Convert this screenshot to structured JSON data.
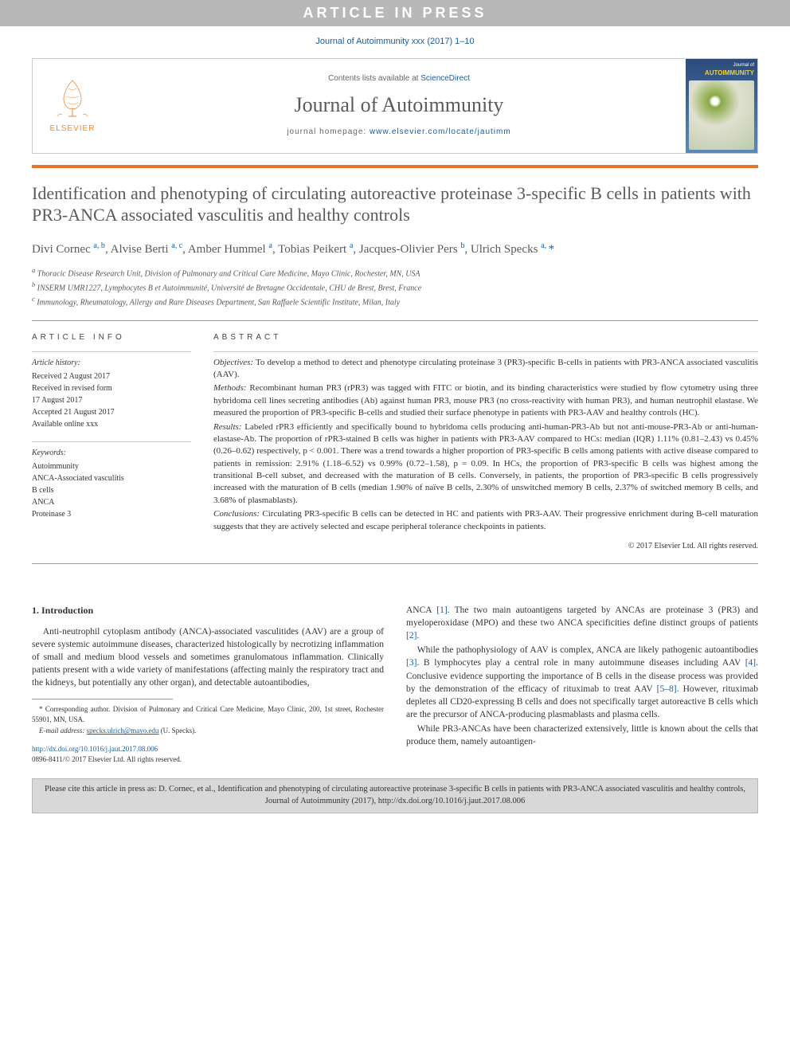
{
  "banner": "ARTICLE IN PRESS",
  "journal_ref": "Journal of Autoimmunity xxx (2017) 1–10",
  "header": {
    "elsevier": "ELSEVIER",
    "sd_prefix": "Contents lists available at ",
    "sd_link": "ScienceDirect",
    "journal_title": "Journal of Autoimmunity",
    "homepage_prefix": "journal homepage: ",
    "homepage_url": "www.elsevier.com/locate/jautimm",
    "cover_label": "AUTOIMMUNITY",
    "cover_small": "Journal of"
  },
  "title": "Identification and phenotyping of circulating autoreactive proteinase 3-specific B cells in patients with PR3-ANCA associated vasculitis and healthy controls",
  "authors_html": "Divi Cornec <sup>a, b</sup>, Alvise Berti <sup>a, c</sup>, Amber Hummel <sup>a</sup>, Tobias Peikert <sup>a</sup>, Jacques-Olivier Pers <sup>b</sup>, Ulrich Specks <sup>a, </sup><span class='star'>*</span>",
  "affiliations": [
    "a Thoracic Disease Research Unit, Division of Pulmonary and Critical Care Medicine, Mayo Clinic, Rochester, MN, USA",
    "b INSERM UMR1227, Lymphocytes B et Autoimmunité, Université de Bretagne Occidentale, CHU de Brest, Brest, France",
    "c Immunology, Rheumatology, Allergy and Rare Diseases Department, San Raffaele Scientific Institute, Milan, Italy"
  ],
  "article_info": {
    "head": "ARTICLE INFO",
    "history_label": "Article history:",
    "history": [
      "Received 2 August 2017",
      "Received in revised form",
      "17 August 2017",
      "Accepted 21 August 2017",
      "Available online xxx"
    ],
    "keywords_label": "Keywords:",
    "keywords": [
      "Autoimmunity",
      "ANCA-Associated vasculitis",
      "B cells",
      "ANCA",
      "Proteinase 3"
    ]
  },
  "abstract": {
    "head": "ABSTRACT",
    "objectives_label": "Objectives:",
    "objectives": " To develop a method to detect and phenotype circulating proteinase 3 (PR3)-specific B-cells in patients with PR3-ANCA associated vasculitis (AAV).",
    "methods_label": "Methods:",
    "methods": " Recombinant human PR3 (rPR3) was tagged with FITC or biotin, and its binding characteristics were studied by flow cytometry using three hybridoma cell lines secreting antibodies (Ab) against human PR3, mouse PR3 (no cross-reactivity with human PR3), and human neutrophil elastase. We measured the proportion of PR3-specific B-cells and studied their surface phenotype in patients with PR3-AAV and healthy controls (HC).",
    "results_label": "Results:",
    "results": " Labeled rPR3 efficiently and specifically bound to hybridoma cells producing anti-human-PR3-Ab but not anti-mouse-PR3-Ab or anti-human-elastase-Ab. The proportion of rPR3-stained B cells was higher in patients with PR3-AAV compared to HCs: median (IQR) 1.11% (0.81–2.43) vs 0.45% (0.26–0.62) respectively, p < 0.001. There was a trend towards a higher proportion of PR3-specific B cells among patients with active disease compared to patients in remission: 2.91% (1.18–6.52) vs 0.99% (0.72–1.58), p = 0.09. In HCs, the proportion of PR3-specific B cells was highest among the transitional B-cell subset, and decreased with the maturation of B cells. Conversely, in patients, the proportion of PR3-specific B cells progressively increased with the maturation of B cells (median 1.90% of naïve B cells, 2.30% of unswitched memory B cells, 2.37% of switched memory B cells, and 3.68% of plasmablasts).",
    "conclusions_label": "Conclusions:",
    "conclusions": " Circulating PR3-specific B cells can be detected in HC and patients with PR3-AAV. Their progressive enrichment during B-cell maturation suggests that they are actively selected and escape peripheral tolerance checkpoints in patients.",
    "copyright": "© 2017 Elsevier Ltd. All rights reserved."
  },
  "intro": {
    "heading": "1. Introduction",
    "col1_p1": "Anti-neutrophil cytoplasm antibody (ANCA)-associated vasculitides (AAV) are a group of severe systemic autoimmune diseases, characterized histologically by necrotizing inflammation of small and medium blood vessels and sometimes granulomatous inflammation. Clinically patients present with a wide variety of manifestations (affecting mainly the respiratory tract and the kidneys, but potentially any other organ), and detectable autoantibodies,",
    "col2_p1_a": "ANCA ",
    "col2_p1_b": ". The two main autoantigens targeted by ANCAs are proteinase 3 (PR3) and myeloperoxidase (MPO) and these two ANCA specificities define distinct groups of patients ",
    "col2_p2_a": "While the pathophysiology of AAV is complex, ANCA are likely pathogenic autoantibodies ",
    "col2_p2_b": ". B lymphocytes play a central role in many autoimmune diseases including AAV ",
    "col2_p2_c": ". Conclusive evidence supporting the importance of B cells in the disease process was provided by the demonstration of the efficacy of rituximab to treat AAV ",
    "col2_p2_d": ". However, rituximab depletes all CD20-expressing B cells and does not specifically target autoreactive B cells which are the precursor of ANCA-producing plasmablasts and plasma cells.",
    "col2_p3": "While PR3-ANCAs have been characterized extensively, little is known about the cells that produce them, namely autoantigen-",
    "refs": {
      "r1": "[1]",
      "r2": "[2]",
      "r3": "[3]",
      "r4": "[4]",
      "r58": "[5–8]"
    }
  },
  "footnote": {
    "corresponding_label": "* Corresponding author. ",
    "corresponding": "Division of Pulmonary and Critical Care Medicine, Mayo Clinic, 200, 1st street, Rochester 55901, MN, USA.",
    "email_label": "E-mail address: ",
    "email": "specks.ulrich@mayo.edu",
    "email_suffix": " (U. Specks)."
  },
  "doi": {
    "url": "http://dx.doi.org/10.1016/j.jaut.2017.08.006",
    "issn": "0896-8411/© 2017 Elsevier Ltd. All rights reserved."
  },
  "cite_box": "Please cite this article in press as: D. Cornec, et al., Identification and phenotyping of circulating autoreactive proteinase 3-specific B cells in patients with PR3-ANCA associated vasculitis and healthy controls, Journal of Autoimmunity (2017), http://dx.doi.org/10.1016/j.jaut.2017.08.006",
  "colors": {
    "banner_bg": "#b8b8b8",
    "orange": "#e8742c",
    "link_blue": "#1a5a9e",
    "text_gray": "#5a5a5a",
    "cite_bg": "#d8d8d8"
  }
}
